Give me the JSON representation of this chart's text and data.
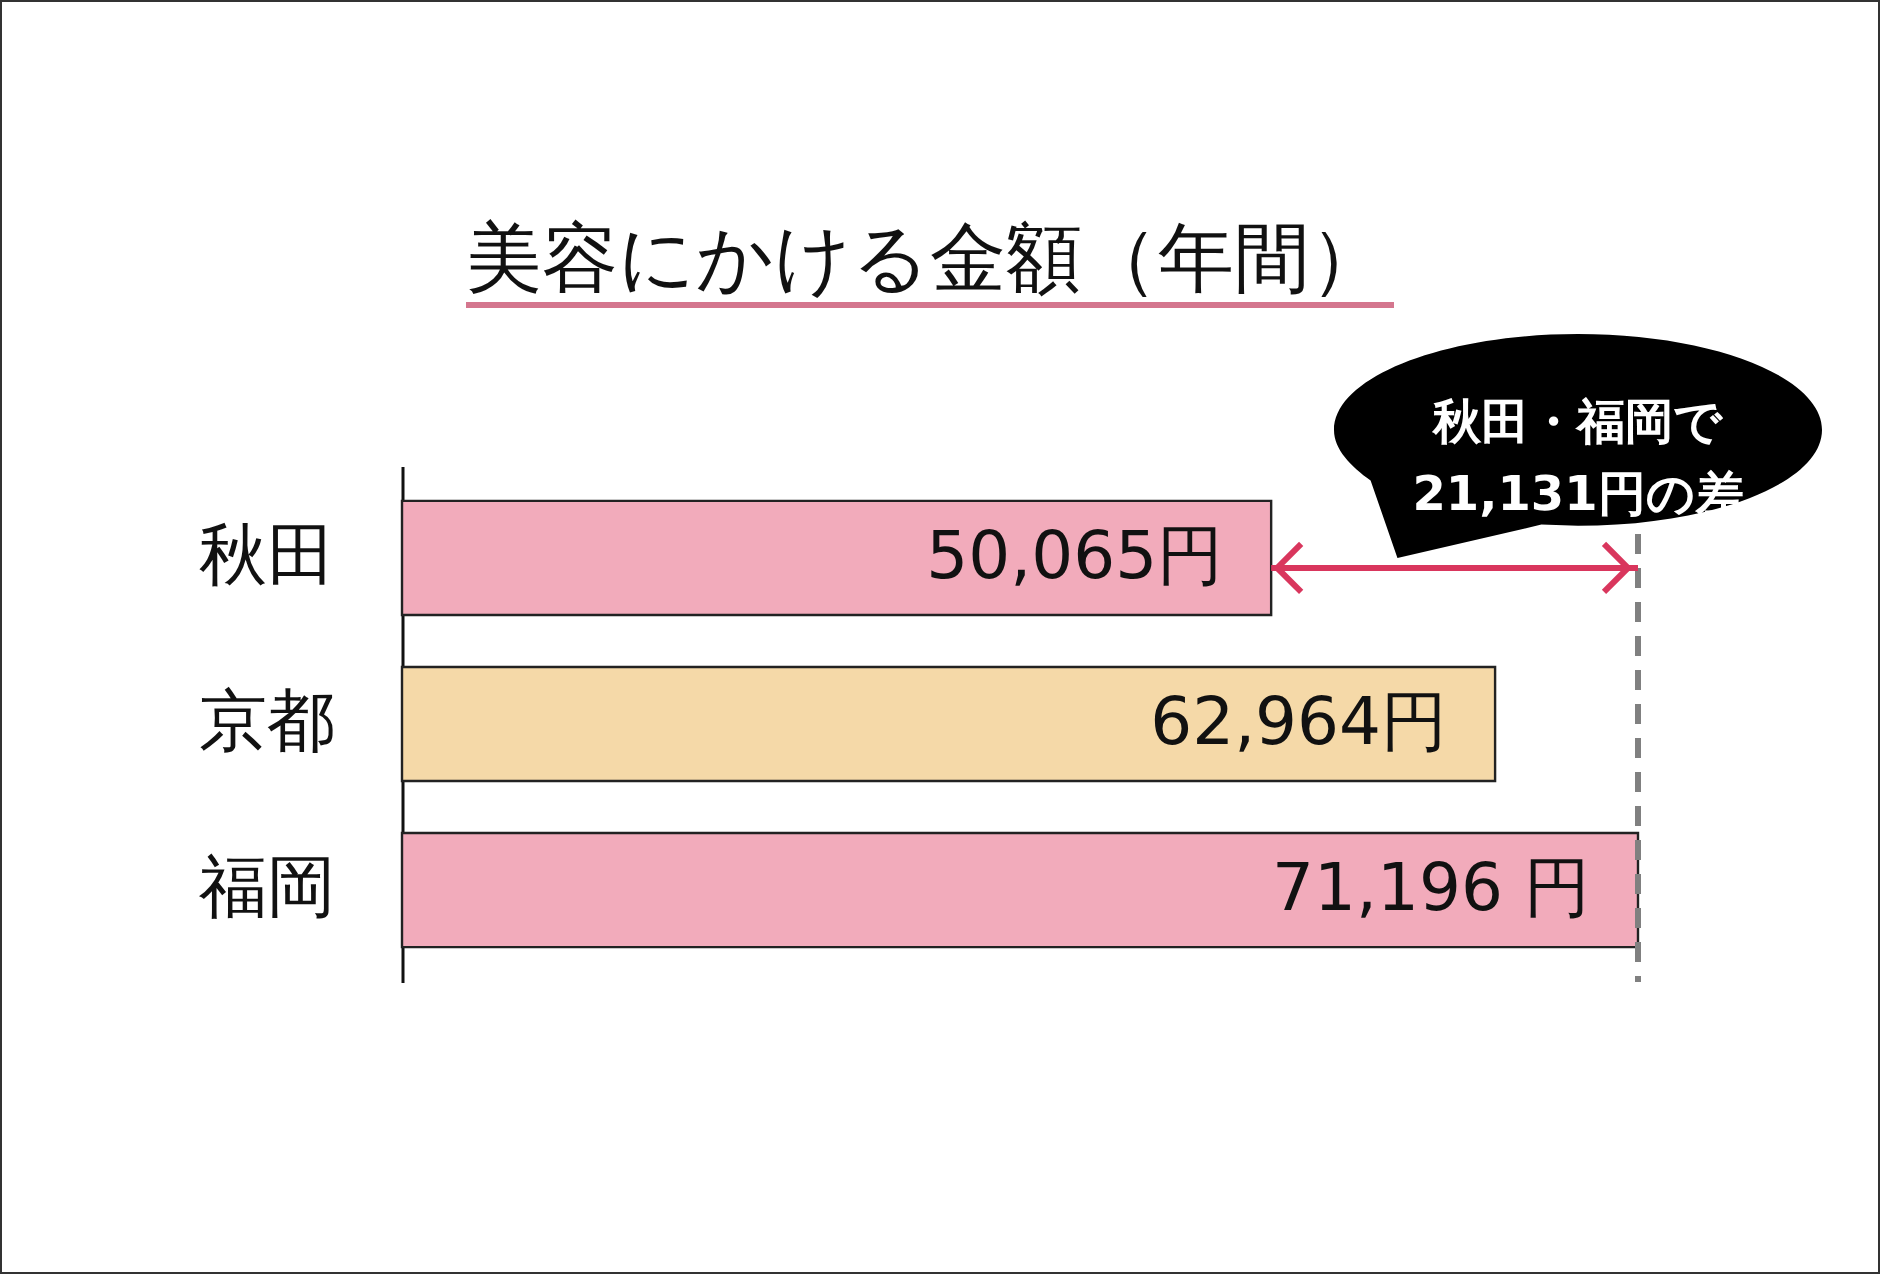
{
  "chart_data": {
    "type": "bar",
    "orientation": "horizontal",
    "title": "美容にかける金額（年間）",
    "categories": [
      "秋田",
      "京都",
      "福岡"
    ],
    "values": [
      50065,
      62964,
      71196
    ],
    "colors": [
      "#f2abbb",
      "#f5d9a8",
      "#f2abbb"
    ],
    "value_labels": [
      "50,065円",
      "62,964円",
      "71,196 円"
    ],
    "ref_lines": [
      {
        "axis": "x",
        "value": 71196,
        "color": "#808080",
        "line_style": "dashed"
      }
    ],
    "annotations": [
      "秋田・福岡で\n21,131円の差"
    ],
    "tick_labels": "y"
  }
}
